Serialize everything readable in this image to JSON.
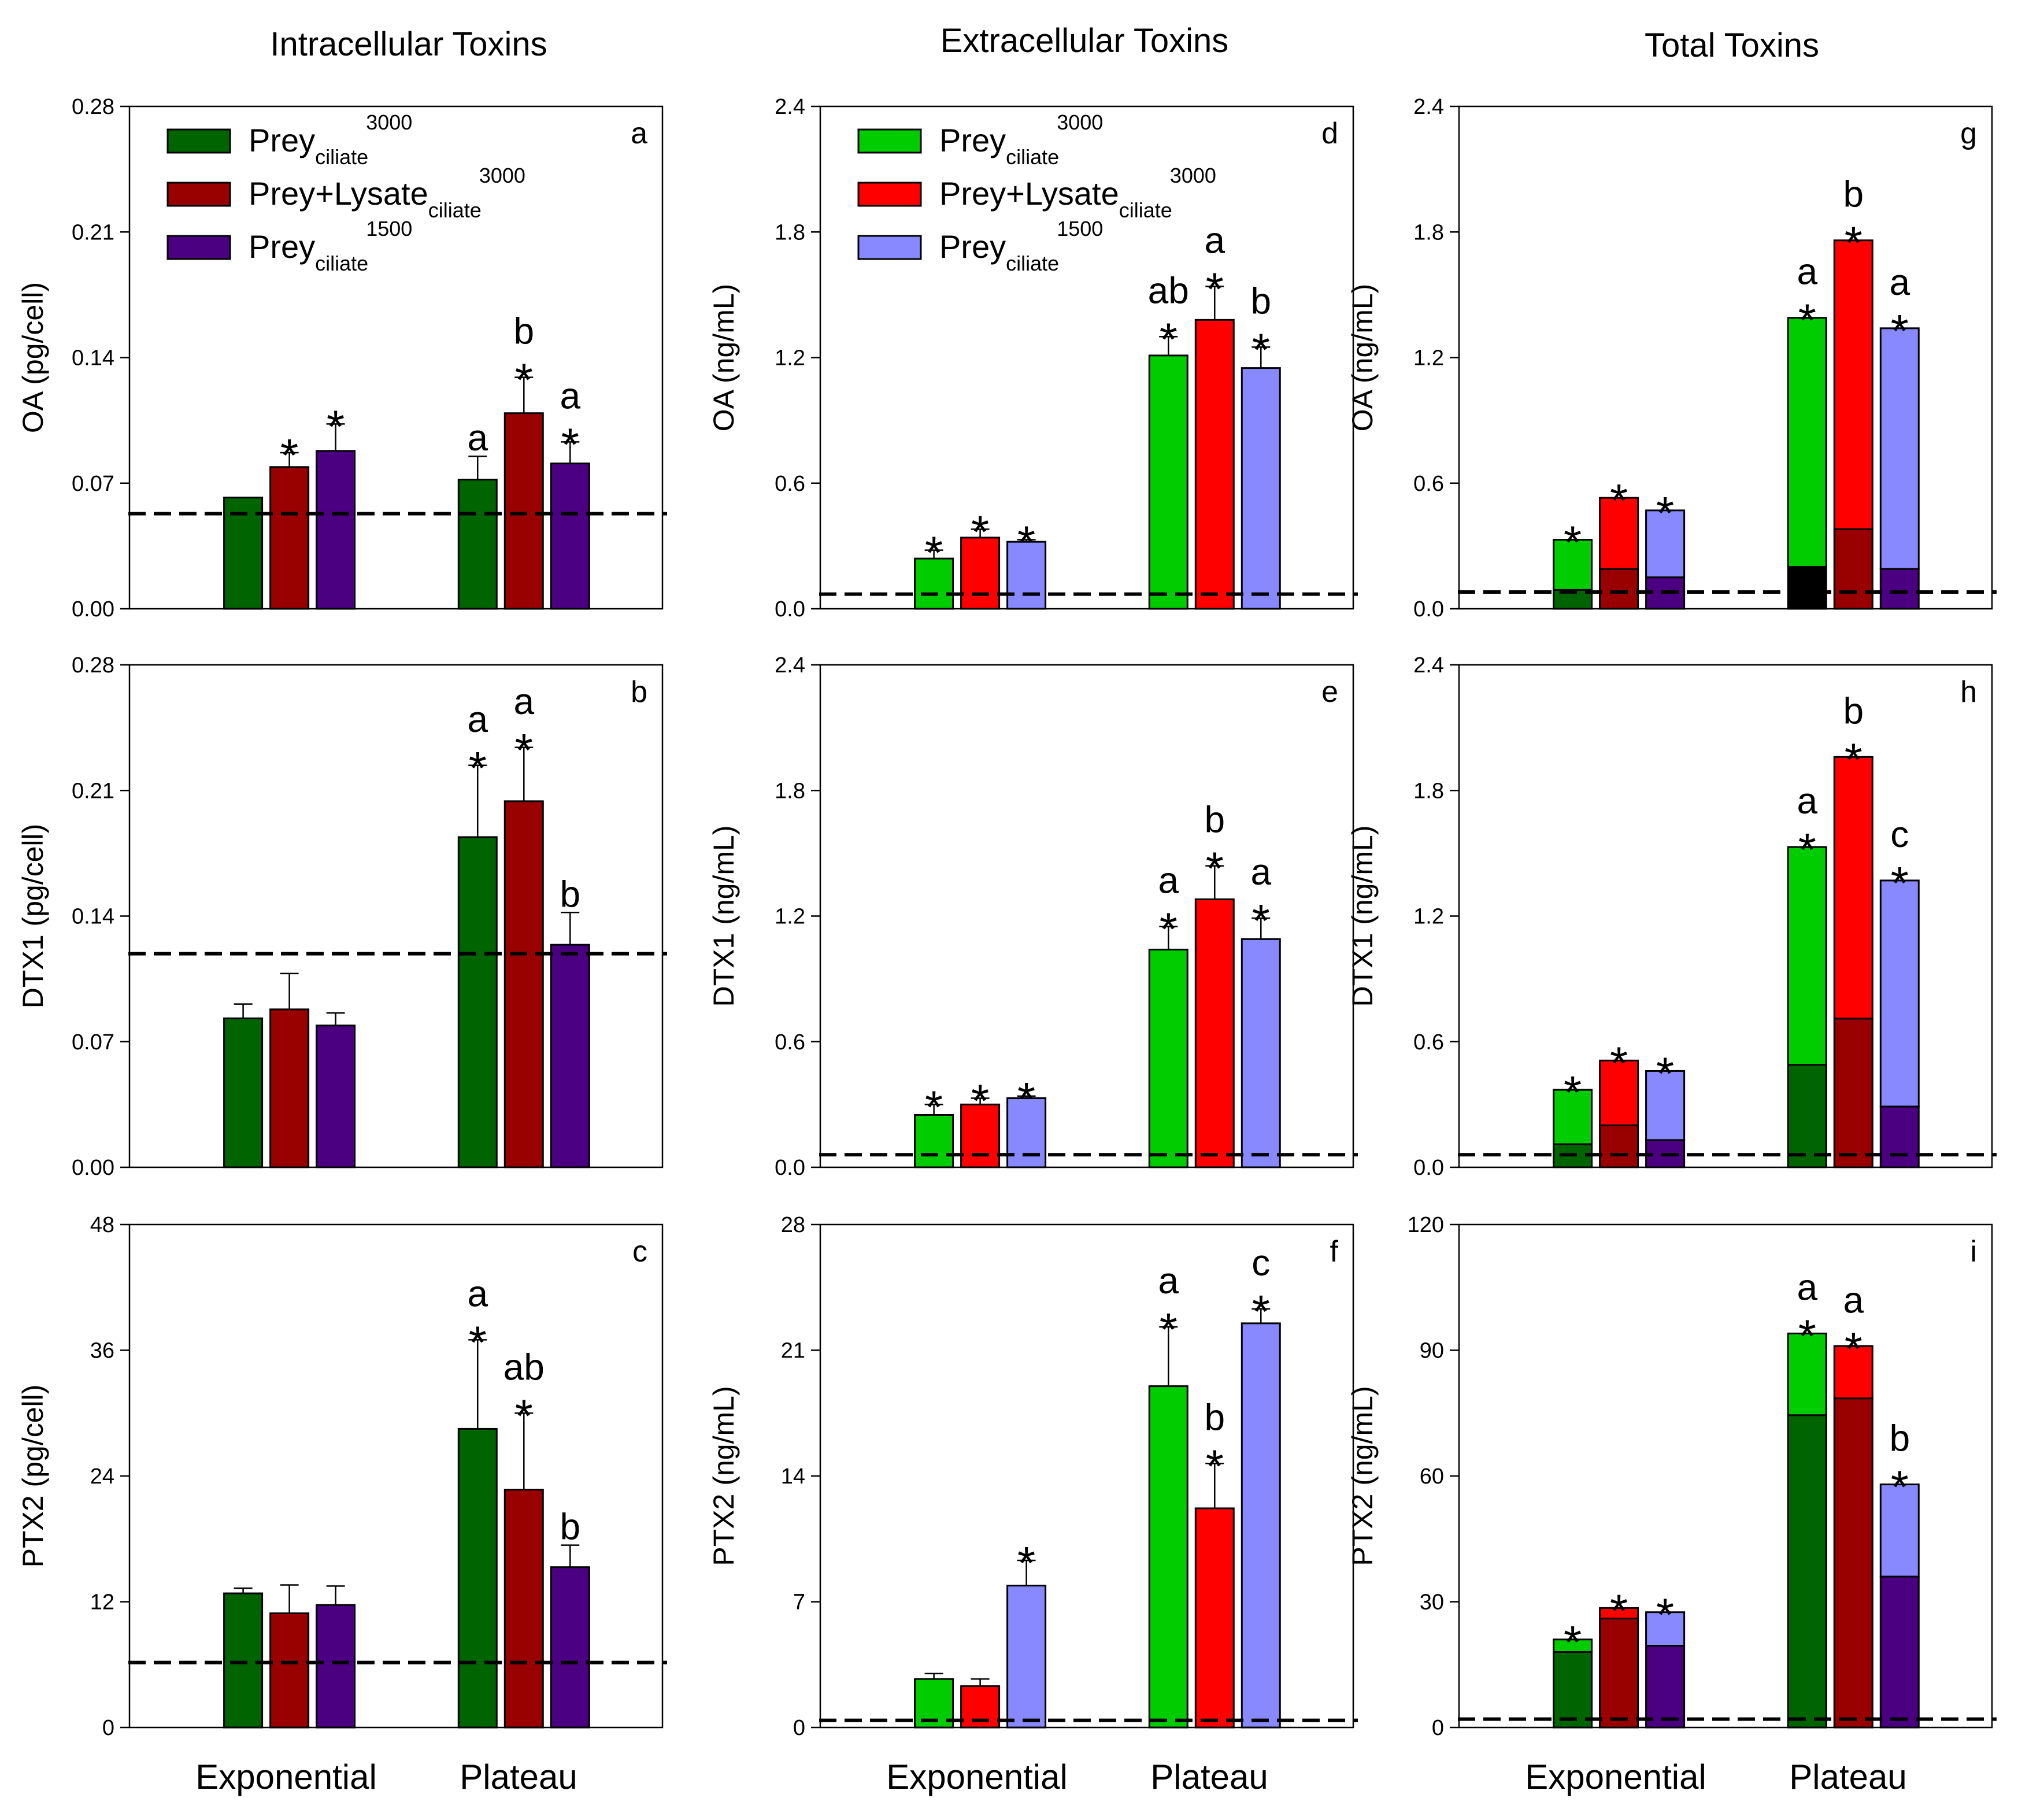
{
  "column_titles": [
    "Intracellular Toxins",
    "Extracellular Toxins",
    "Total Toxins"
  ],
  "category_labels": [
    "Exponential",
    "Plateau"
  ],
  "legend": [
    {
      "main": "Prey",
      "sub": "ciliate",
      "sup": "3000"
    },
    {
      "main": "Prey+Lysate",
      "sub": "ciliate",
      "sup": "3000"
    },
    {
      "main": "Prey",
      "sub": "ciliate",
      "sup": "1500"
    }
  ],
  "colors": {
    "intracellular": [
      "#006400",
      "#990000",
      "#4b0082"
    ],
    "extracellular": [
      "#00cc00",
      "#ff0000",
      "#8888ff"
    ],
    "plateau_total_first_dark": "#000000"
  },
  "chart_data": [
    {
      "type": "bar",
      "panel": "a",
      "ylabel": "OA (pg/cell)",
      "ylim": [
        0,
        0.28
      ],
      "ticks": [
        "0.00",
        "0.07",
        "0.14",
        "0.21",
        "0.28"
      ],
      "tick_values": [
        0,
        0.07,
        0.14,
        0.21,
        0.28
      ],
      "categories": [
        "Exponential",
        "Plateau"
      ],
      "dashed_line": 0.053,
      "legend": true,
      "series": [
        {
          "name": "Prey ciliate 3000",
          "values": [
            0.062,
            0.072
          ],
          "errors": [
            0,
            0.013
          ],
          "stars": [
            false,
            false
          ],
          "letters": [
            "",
            "a"
          ]
        },
        {
          "name": "Prey+Lysate ciliate 3000",
          "values": [
            0.079,
            0.109
          ],
          "errors": [
            0.008,
            0.02
          ],
          "stars": [
            true,
            true
          ],
          "letters": [
            "",
            "b"
          ]
        },
        {
          "name": "Prey ciliate 1500",
          "values": [
            0.088,
            0.081
          ],
          "errors": [
            0.015,
            0.012
          ],
          "stars": [
            true,
            true
          ],
          "letters": [
            "",
            "a"
          ]
        }
      ]
    },
    {
      "type": "bar",
      "panel": "b",
      "ylabel": "DTX1 (pg/cell)",
      "ylim": [
        0,
        0.28
      ],
      "ticks": [
        "0.00",
        "0.07",
        "0.14",
        "0.21",
        "0.28"
      ],
      "tick_values": [
        0,
        0.07,
        0.14,
        0.21,
        0.28
      ],
      "categories": [
        "Exponential",
        "Plateau"
      ],
      "dashed_line": 0.119,
      "legend": false,
      "series": [
        {
          "name": "Prey ciliate 3000",
          "values": [
            0.083,
            0.184
          ],
          "errors": [
            0.008,
            0.04
          ],
          "stars": [
            false,
            true
          ],
          "letters": [
            "",
            "a"
          ]
        },
        {
          "name": "Prey+Lysate ciliate 3000",
          "values": [
            0.088,
            0.204
          ],
          "errors": [
            0.02,
            0.03
          ],
          "stars": [
            false,
            true
          ],
          "letters": [
            "",
            "a"
          ]
        },
        {
          "name": "Prey ciliate 1500",
          "values": [
            0.079,
            0.124
          ],
          "errors": [
            0.007,
            0.018
          ],
          "stars": [
            false,
            false
          ],
          "letters": [
            "",
            "b"
          ]
        }
      ]
    },
    {
      "type": "bar",
      "panel": "c",
      "ylabel": "PTX2 (pg/cell)",
      "ylim": [
        0,
        48
      ],
      "ticks": [
        "0",
        "12",
        "24",
        "36",
        "48"
      ],
      "tick_values": [
        0,
        12,
        24,
        36,
        48
      ],
      "categories": [
        "Exponential",
        "Plateau"
      ],
      "dashed_line": 6.2,
      "legend": false,
      "series": [
        {
          "name": "Prey ciliate 3000",
          "values": [
            12.8,
            28.5
          ],
          "errors": [
            0.5,
            8.5
          ],
          "stars": [
            false,
            true
          ],
          "letters": [
            "",
            "a"
          ]
        },
        {
          "name": "Prey+Lysate ciliate 3000",
          "values": [
            10.9,
            22.7
          ],
          "errors": [
            2.7,
            7.3
          ],
          "stars": [
            false,
            true
          ],
          "letters": [
            "",
            "ab"
          ]
        },
        {
          "name": "Prey ciliate 1500",
          "values": [
            11.7,
            15.3
          ],
          "errors": [
            1.8,
            2.1
          ],
          "stars": [
            false,
            false
          ],
          "letters": [
            "",
            "b"
          ]
        }
      ]
    },
    {
      "type": "bar",
      "panel": "d",
      "ylabel": "OA (ng/mL)",
      "ylim": [
        0,
        2.4
      ],
      "ticks": [
        "0.0",
        "0.6",
        "1.2",
        "1.8",
        "2.4"
      ],
      "tick_values": [
        0,
        0.6,
        1.2,
        1.8,
        2.4
      ],
      "categories": [
        "Exponential",
        "Plateau"
      ],
      "dashed_line": 0.07,
      "legend": true,
      "series": [
        {
          "name": "Prey ciliate 3000",
          "values": [
            0.24,
            1.21
          ],
          "errors": [
            0.04,
            0.09
          ],
          "stars": [
            true,
            true
          ],
          "letters": [
            "",
            "ab"
          ]
        },
        {
          "name": "Prey+Lysate ciliate 3000",
          "values": [
            0.34,
            1.38
          ],
          "errors": [
            0.04,
            0.16
          ],
          "stars": [
            true,
            true
          ],
          "letters": [
            "",
            "a"
          ]
        },
        {
          "name": "Prey ciliate 1500",
          "values": [
            0.32,
            1.15
          ],
          "errors": [
            0.01,
            0.1
          ],
          "stars": [
            true,
            true
          ],
          "letters": [
            "",
            "b"
          ]
        }
      ]
    },
    {
      "type": "bar",
      "panel": "e",
      "ylabel": "DTX1 (ng/mL)",
      "ylim": [
        0,
        2.4
      ],
      "ticks": [
        "0.0",
        "0.6",
        "1.2",
        "1.8",
        "2.4"
      ],
      "tick_values": [
        0,
        0.6,
        1.2,
        1.8,
        2.4
      ],
      "categories": [
        "Exponential",
        "Plateau"
      ],
      "dashed_line": 0.06,
      "legend": false,
      "series": [
        {
          "name": "Prey ciliate 3000",
          "values": [
            0.25,
            1.04
          ],
          "errors": [
            0.05,
            0.11
          ],
          "stars": [
            true,
            true
          ],
          "letters": [
            "",
            "a"
          ]
        },
        {
          "name": "Prey+Lysate ciliate 3000",
          "values": [
            0.3,
            1.28
          ],
          "errors": [
            0.03,
            0.16
          ],
          "stars": [
            true,
            true
          ],
          "letters": [
            "",
            "b"
          ]
        },
        {
          "name": "Prey ciliate 1500",
          "values": [
            0.33,
            1.09
          ],
          "errors": [
            0.01,
            0.1
          ],
          "stars": [
            true,
            true
          ],
          "letters": [
            "",
            "a"
          ]
        }
      ]
    },
    {
      "type": "bar",
      "panel": "f",
      "ylabel": "PTX2 (ng/mL)",
      "ylim": [
        0,
        28
      ],
      "ticks": [
        "0",
        "7",
        "14",
        "21",
        "28"
      ],
      "tick_values": [
        0,
        7,
        14,
        21,
        28
      ],
      "categories": [
        "Exponential",
        "Plateau"
      ],
      "dashed_line": 0.4,
      "legend": false,
      "series": [
        {
          "name": "Prey ciliate 3000",
          "values": [
            2.7,
            19.0
          ],
          "errors": [
            0.3,
            3.3
          ],
          "stars": [
            false,
            true
          ],
          "letters": [
            "",
            "a"
          ]
        },
        {
          "name": "Prey+Lysate ciliate 3000",
          "values": [
            2.3,
            12.2
          ],
          "errors": [
            0.4,
            2.5
          ],
          "stars": [
            false,
            true
          ],
          "letters": [
            "",
            "b"
          ]
        },
        {
          "name": "Prey ciliate 1500",
          "values": [
            7.9,
            22.5
          ],
          "errors": [
            1.4,
            0.8
          ],
          "stars": [
            true,
            true
          ],
          "letters": [
            "",
            "c"
          ]
        }
      ]
    },
    {
      "type": "stacked-bar",
      "panel": "g",
      "ylabel": "OA (ng/mL)",
      "ylim": [
        0,
        2.4
      ],
      "ticks": [
        "0.0",
        "0.6",
        "1.2",
        "1.8",
        "2.4"
      ],
      "tick_values": [
        0,
        0.6,
        1.2,
        1.8,
        2.4
      ],
      "categories": [
        "Exponential",
        "Plateau"
      ],
      "dashed_line": 0.08,
      "legend": false,
      "series": [
        {
          "name": "Prey ciliate 3000",
          "intracellular": [
            0.09,
            0.2
          ],
          "totals": [
            0.33,
            1.39
          ],
          "stars": [
            true,
            true
          ],
          "letters": [
            "",
            "a"
          ]
        },
        {
          "name": "Prey+Lysate ciliate 3000",
          "intracellular": [
            0.19,
            0.38
          ],
          "totals": [
            0.53,
            1.76
          ],
          "stars": [
            true,
            true
          ],
          "letters": [
            "",
            "b"
          ]
        },
        {
          "name": "Prey ciliate 1500",
          "intracellular": [
            0.15,
            0.19
          ],
          "totals": [
            0.47,
            1.34
          ],
          "stars": [
            true,
            true
          ],
          "letters": [
            "",
            "a"
          ]
        }
      ]
    },
    {
      "type": "stacked-bar",
      "panel": "h",
      "ylabel": "DTX1 (ng/mL)",
      "ylim": [
        0,
        2.4
      ],
      "ticks": [
        "0.0",
        "0.6",
        "1.2",
        "1.8",
        "2.4"
      ],
      "tick_values": [
        0,
        0.6,
        1.2,
        1.8,
        2.4
      ],
      "categories": [
        "Exponential",
        "Plateau"
      ],
      "dashed_line": 0.06,
      "legend": false,
      "series": [
        {
          "name": "Prey ciliate 3000",
          "intracellular": [
            0.11,
            0.49
          ],
          "totals": [
            0.37,
            1.53
          ],
          "stars": [
            true,
            true
          ],
          "letters": [
            "",
            "a"
          ]
        },
        {
          "name": "Prey+Lysate ciliate 3000",
          "intracellular": [
            0.2,
            0.71
          ],
          "totals": [
            0.51,
            1.96
          ],
          "stars": [
            true,
            true
          ],
          "letters": [
            "",
            "b"
          ]
        },
        {
          "name": "Prey ciliate 1500",
          "intracellular": [
            0.13,
            0.29
          ],
          "totals": [
            0.46,
            1.37
          ],
          "stars": [
            true,
            true
          ],
          "letters": [
            "",
            "c"
          ]
        }
      ]
    },
    {
      "type": "stacked-bar",
      "panel": "i",
      "ylabel": "PTX2 (ng/mL)",
      "ylim": [
        0,
        120
      ],
      "ticks": [
        "0",
        "30",
        "60",
        "90",
        "120"
      ],
      "tick_values": [
        0,
        30,
        60,
        90,
        120
      ],
      "categories": [
        "Exponential",
        "Plateau"
      ],
      "dashed_line": 2.0,
      "legend": false,
      "series": [
        {
          "name": "Prey ciliate 3000",
          "intracellular": [
            18.0,
            74.5
          ],
          "totals": [
            21.0,
            94.0
          ],
          "stars": [
            true,
            true
          ],
          "letters": [
            "",
            "a"
          ]
        },
        {
          "name": "Prey+Lysate ciliate 3000",
          "intracellular": [
            26.0,
            78.5
          ],
          "totals": [
            28.5,
            91.0
          ],
          "stars": [
            true,
            true
          ],
          "letters": [
            "",
            "a"
          ]
        },
        {
          "name": "Prey ciliate 1500",
          "intracellular": [
            19.5,
            36.0
          ],
          "totals": [
            27.5,
            58.0
          ],
          "stars": [
            true,
            true
          ],
          "letters": [
            "",
            "b"
          ]
        }
      ]
    }
  ]
}
